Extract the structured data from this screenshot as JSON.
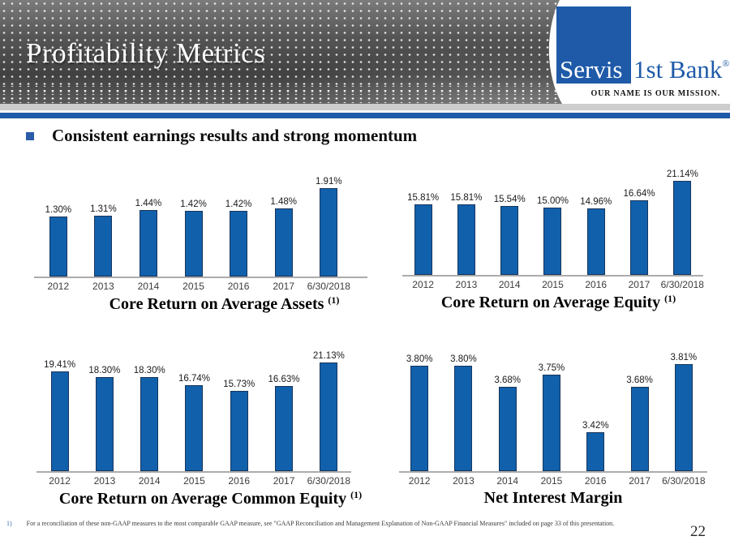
{
  "slide": {
    "title": "Profitability Metrics",
    "bullet": "Consistent earnings results and strong momentum",
    "page_number": "22"
  },
  "logo": {
    "name_part1": "Servis",
    "name_part2": "1st Bank",
    "registered_mark": "®",
    "tagline": "OUR NAME IS OUR MISSION."
  },
  "footnote": {
    "marker": "1)",
    "text": "For a reconciliation of these non-GAAP measures to the most comparable GAAP measure, see \"GAAP Reconciliation and Management Explanation of Non-GAAP Financial Measures\" included on page 33 of this presentation."
  },
  "colors": {
    "accent_blue": "#1E5AA8",
    "bar_fill": "#1160AB",
    "bar_border": "#16355C",
    "header_stripe_blue": "#1E5AA8",
    "axis_gray": "#ACACAC"
  },
  "chart_data": [
    {
      "type": "bar",
      "title": "Core Return on Average Assets",
      "title_superscript": "(1)",
      "categories": [
        "2012",
        "2013",
        "2014",
        "2015",
        "2016",
        "2017",
        "6/30/2018"
      ],
      "values": [
        1.3,
        1.31,
        1.44,
        1.42,
        1.42,
        1.48,
        1.91
      ],
      "labels": [
        "1.30%",
        "1.31%",
        "1.44%",
        "1.42%",
        "1.42%",
        "1.48%",
        "1.91%"
      ],
      "ylim": [
        0,
        2.0
      ],
      "grid": false,
      "legend": "none",
      "data_labels": "above bars"
    },
    {
      "type": "bar",
      "title": "Core Return on Average Equity",
      "title_superscript": "(1)",
      "categories": [
        "2012",
        "2013",
        "2014",
        "2015",
        "2016",
        "2017",
        "6/30/2018"
      ],
      "values": [
        15.81,
        15.81,
        15.54,
        15.0,
        14.96,
        16.64,
        21.14
      ],
      "labels": [
        "15.81%",
        "15.81%",
        "15.54%",
        "15.00%",
        "14.96%",
        "16.64%",
        "21.14%"
      ],
      "ylim": [
        0,
        22
      ],
      "grid": false,
      "legend": "none",
      "data_labels": "above bars"
    },
    {
      "type": "bar",
      "title": "Core Return on Average Common Equity",
      "title_superscript": "(1)",
      "categories": [
        "2012",
        "2013",
        "2014",
        "2015",
        "2016",
        "2017",
        "6/30/2018"
      ],
      "values": [
        19.41,
        18.3,
        18.3,
        16.74,
        15.73,
        16.63,
        21.13
      ],
      "labels": [
        "19.41%",
        "18.30%",
        "18.30%",
        "16.74%",
        "15.73%",
        "16.63%",
        "21.13%"
      ],
      "ylim": [
        0,
        22
      ],
      "grid": false,
      "legend": "none",
      "data_labels": "above bars"
    },
    {
      "type": "bar",
      "title": "Net Interest Margin",
      "title_superscript": "",
      "categories": [
        "2012",
        "2013",
        "2014",
        "2015",
        "2016",
        "2017",
        "6/30/2018"
      ],
      "values": [
        3.8,
        3.8,
        3.68,
        3.75,
        3.42,
        3.68,
        3.81
      ],
      "labels": [
        "3.80%",
        "3.80%",
        "3.68%",
        "3.75%",
        "3.42%",
        "3.68%",
        "3.81%"
      ],
      "ylim": [
        3.2,
        3.85
      ],
      "grid": false,
      "legend": "none",
      "data_labels": "above bars"
    }
  ]
}
